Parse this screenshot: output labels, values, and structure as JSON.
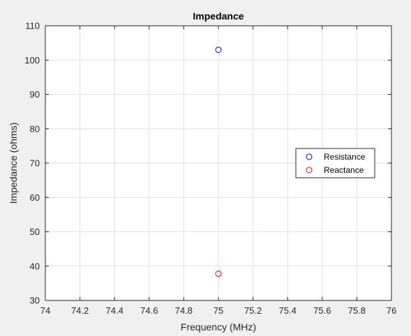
{
  "chart_data": {
    "type": "scatter",
    "title": "Impedance",
    "xlabel": "Frequency (MHz)",
    "ylabel": "Impedance (ohms)",
    "xlim": [
      74,
      76
    ],
    "ylim": [
      30,
      110
    ],
    "xticks": [
      "74",
      "74.2",
      "74.4",
      "74.6",
      "74.8",
      "75",
      "75.2",
      "75.4",
      "75.6",
      "75.8",
      "76"
    ],
    "yticks": [
      "30",
      "40",
      "50",
      "60",
      "70",
      "80",
      "90",
      "100",
      "110"
    ],
    "grid": true,
    "legend_position": "right",
    "series": [
      {
        "name": "Resistance",
        "color": "#0000ff",
        "marker": "circle-open",
        "x": [
          75
        ],
        "y": [
          103
        ]
      },
      {
        "name": "Reactance",
        "color": "#ff0000",
        "marker": "circle-open",
        "x": [
          75
        ],
        "y": [
          37.8
        ]
      }
    ]
  }
}
